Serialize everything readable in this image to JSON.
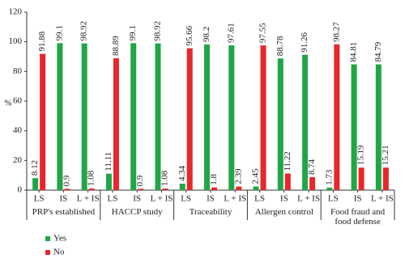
{
  "chart_data": {
    "type": "grouped-bar",
    "y_label": "%",
    "categories": [
      "LS",
      "IS",
      "L + IS",
      "LS",
      "IS",
      "L + IS",
      "LS",
      "IS",
      "L + IS",
      "LS",
      "IS",
      "L + IS",
      "LS",
      "IS",
      "L + IS"
    ],
    "groups": [
      "PRP's established",
      "HACCP study",
      "Traceability",
      "Allergen control",
      "Food fraud and food defense"
    ],
    "series": [
      {
        "name": "Yes",
        "color": "#21a647",
        "values": [
          8.12,
          99.1,
          98.92,
          11.11,
          99.1,
          98.92,
          4.34,
          98.2,
          97.61,
          2.45,
          88.78,
          91.26,
          1.73,
          84.81,
          84.79
        ]
      },
      {
        "name": "No",
        "color": "#e8262b",
        "values": [
          91.88,
          0.9,
          1.08,
          88.89,
          0.9,
          1.08,
          95.66,
          1.8,
          2.39,
          97.55,
          11.22,
          8.74,
          98.27,
          15.19,
          15.21
        ]
      }
    ],
    "ylim": [
      0,
      120
    ],
    "yticks": [
      0,
      20,
      40,
      60,
      80,
      100,
      120
    ],
    "legend": "bottom-left"
  }
}
